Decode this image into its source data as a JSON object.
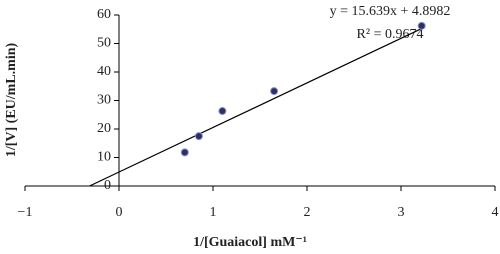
{
  "chart_data": {
    "type": "scatter",
    "x_label": "1/[Guaiacol] mM⁻¹",
    "y_label": "1/[V] (EU/mL.min)",
    "x": [
      0.7,
      0.85,
      1.1,
      1.65,
      3.22
    ],
    "values": [
      11.8,
      17.5,
      26.3,
      33.3,
      56.2
    ],
    "color": "#2b2f6b",
    "trendline": {
      "slope": 15.639,
      "intercept": 4.8982,
      "x_range": [
        -0.31,
        3.22
      ],
      "color": "#000000"
    },
    "annotations": [
      "y = 15.639x + 4.8982",
      "R² = 0.9674"
    ],
    "xlim": [
      -1,
      4
    ],
    "xticks": [
      {
        "value": -1,
        "label": "−1"
      },
      0,
      1,
      2,
      3,
      4
    ],
    "ylim": [
      0,
      60
    ],
    "yticks": [
      0,
      10,
      20,
      30,
      40,
      50,
      60
    ],
    "grid": false
  }
}
